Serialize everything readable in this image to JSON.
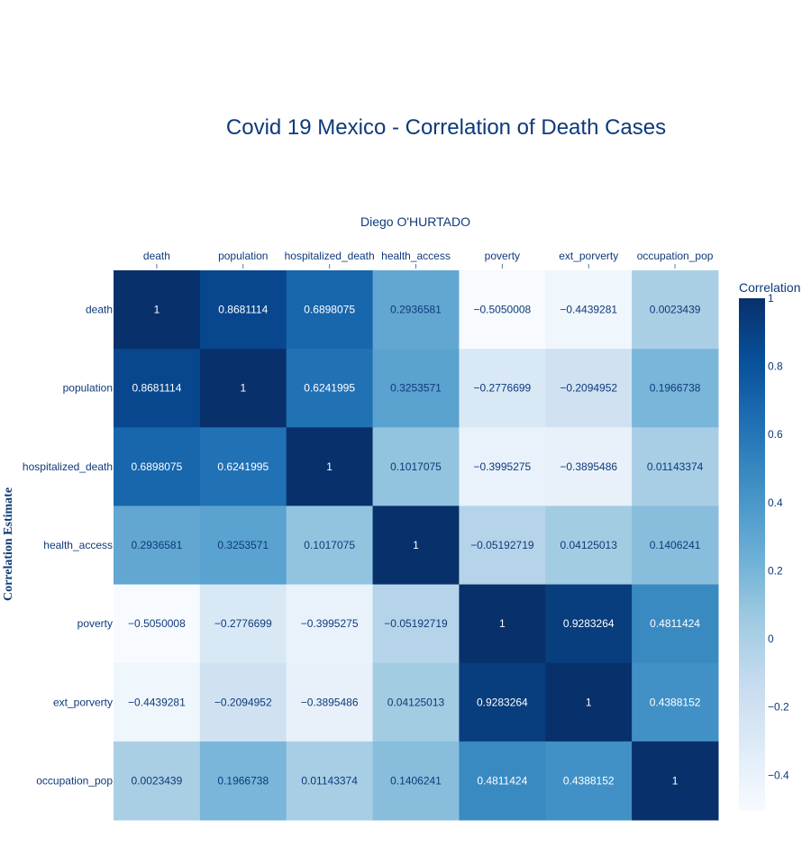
{
  "chart_data": {
    "type": "heatmap",
    "title": "Covid 19 Mexico - Correlation of Death Cases",
    "subtitle": "Diego O'HURTADO",
    "ylabel": "Correlation Estimate",
    "x_categories": [
      "death",
      "population",
      "hospitalized_death",
      "health_access",
      "poverty",
      "ext_porverty",
      "occupation_pop"
    ],
    "y_categories": [
      "death",
      "population",
      "hospitalized_death",
      "health_access",
      "poverty",
      "ext_porverty",
      "occupation_pop"
    ],
    "z": [
      [
        1,
        0.8681114,
        0.6898075,
        0.2936581,
        -0.5050008,
        -0.4439281,
        0.0023439
      ],
      [
        0.8681114,
        1,
        0.6241995,
        0.3253571,
        -0.2776699,
        -0.2094952,
        0.1966738
      ],
      [
        0.6898075,
        0.6241995,
        1,
        0.1017075,
        -0.3995275,
        -0.3895486,
        0.01143374
      ],
      [
        0.2936581,
        0.3253571,
        0.1017075,
        1,
        -0.05192719,
        0.04125013,
        0.1406241
      ],
      [
        -0.5050008,
        -0.2776699,
        -0.3995275,
        -0.05192719,
        1,
        0.9283264,
        0.4811424
      ],
      [
        -0.4439281,
        -0.2094952,
        -0.3895486,
        0.04125013,
        0.9283264,
        1,
        0.4388152
      ],
      [
        0.0023439,
        0.1966738,
        0.01143374,
        0.1406241,
        0.4811424,
        0.4388152,
        1
      ]
    ],
    "cell_text": [
      [
        "1",
        "0.8681114",
        "0.6898075",
        "0.2936581",
        "−0.5050008",
        "−0.4439281",
        "0.0023439"
      ],
      [
        "0.8681114",
        "1",
        "0.6241995",
        "0.3253571",
        "−0.2776699",
        "−0.2094952",
        "0.1966738"
      ],
      [
        "0.6898075",
        "0.6241995",
        "1",
        "0.1017075",
        "−0.3995275",
        "−0.3895486",
        "0.01143374"
      ],
      [
        "0.2936581",
        "0.3253571",
        "0.1017075",
        "1",
        "−0.05192719",
        "0.04125013",
        "0.1406241"
      ],
      [
        "−0.5050008",
        "−0.2776699",
        "−0.3995275",
        "−0.05192719",
        "1",
        "0.9283264",
        "0.4811424"
      ],
      [
        "−0.4439281",
        "−0.2094952",
        "−0.3895486",
        "0.04125013",
        "0.9283264",
        "1",
        "0.4388152"
      ],
      [
        "0.0023439",
        "0.1966738",
        "0.01143374",
        "0.1406241",
        "0.4811424",
        "0.4388152",
        "1"
      ]
    ],
    "colorbar": {
      "title": "Correlation",
      "range": [
        -0.5050008,
        1
      ],
      "ticks": [
        1,
        0.8,
        0.6,
        0.4,
        0.2,
        0,
        -0.2,
        -0.4
      ],
      "tick_labels": [
        "1",
        "0.8",
        "0.6",
        "0.4",
        "0.2",
        "0",
        "−0.2",
        "−0.4"
      ]
    },
    "colorscale": [
      "#f7fbff",
      "#deebf7",
      "#c6dbef",
      "#9ecae1",
      "#6baed6",
      "#4292c6",
      "#2171b5",
      "#08519c",
      "#08306b"
    ],
    "x_axis_position": "top"
  }
}
